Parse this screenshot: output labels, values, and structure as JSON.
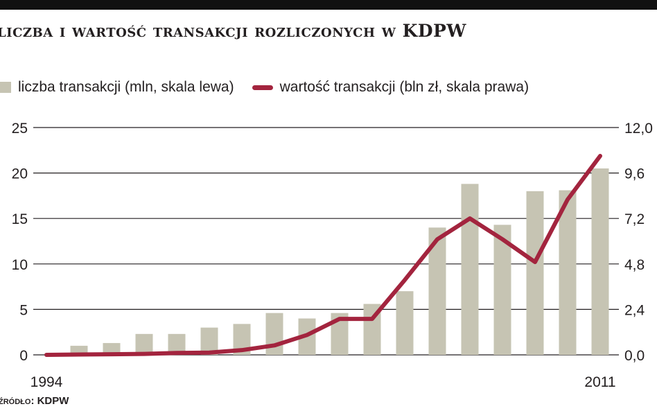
{
  "title": "liczba i wartość transakcji rozliczonych w KDPW",
  "legend": {
    "bars_label": "liczba transakcji (mln, skala lewa)",
    "line_label": "wartość transakcji (bln zł, skala prawa)"
  },
  "source": "źródło: KDPW",
  "colors": {
    "bar": "#c6c4b3",
    "line": "#a3243e",
    "grid": "#231f20"
  },
  "chart_data": {
    "type": "bar",
    "x": [
      1994,
      1995,
      1996,
      1997,
      1998,
      1999,
      2000,
      2001,
      2002,
      2003,
      2004,
      2005,
      2006,
      2007,
      2008,
      2009,
      2010,
      2011
    ],
    "x_tick_labels": [
      "1994",
      "2011"
    ],
    "y_left_ticks": [
      "0",
      "5",
      "10",
      "15",
      "20",
      "25"
    ],
    "y_right_ticks": [
      "0,0",
      "2,4",
      "4,8",
      "7,2",
      "9,6",
      "12,0"
    ],
    "ylim_left": [
      0,
      25
    ],
    "ylim_right": [
      0,
      12
    ],
    "grid": true,
    "legend_position": "top",
    "series": [
      {
        "name": "liczba transakcji (mln, skala lewa)",
        "type": "bar",
        "axis": "left",
        "values": [
          null,
          1.0,
          1.3,
          2.3,
          2.3,
          3.0,
          3.4,
          4.6,
          4.0,
          4.6,
          5.6,
          7.0,
          14.0,
          18.8,
          14.3,
          18.0,
          18.1,
          20.5
        ]
      },
      {
        "name": "wartość transakcji (bln zł, skala prawa)",
        "type": "line",
        "axis": "right",
        "values": [
          0.0,
          0.02,
          0.03,
          0.05,
          0.1,
          0.12,
          0.25,
          0.5,
          1.05,
          1.9,
          1.9,
          3.95,
          6.1,
          7.2,
          6.1,
          4.9,
          8.2,
          10.5
        ]
      }
    ]
  }
}
